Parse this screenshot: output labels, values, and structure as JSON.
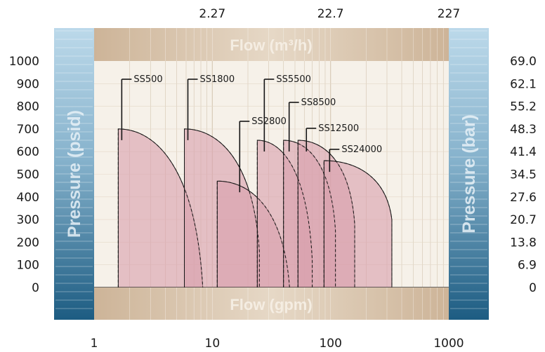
{
  "chart_data": {
    "type": "area",
    "x_scale": "log",
    "xlim": [
      1,
      1000
    ],
    "ylim": [
      0,
      1000
    ],
    "bottom_axis": {
      "title": "Flow (gpm)",
      "ticks": [
        "1",
        "10",
        "100",
        "1000"
      ]
    },
    "top_axis": {
      "title": "Flow (m³/h)",
      "ticks": [
        "2.27",
        "22.7",
        "227"
      ]
    },
    "left_axis": {
      "title": "Pressure (psid)",
      "ticks": [
        "1000",
        "900",
        "800",
        "700",
        "600",
        "500",
        "400",
        "300",
        "200",
        "100",
        "0"
      ]
    },
    "right_axis": {
      "title": "Pressure (bar)",
      "ticks": [
        "69.0",
        "62.1",
        "55.2",
        "48.3",
        "41.4",
        "34.5",
        "27.6",
        "20.7",
        "13.8",
        "6.9",
        "0"
      ]
    },
    "series": [
      {
        "name": "SS500",
        "x_min": 1.6,
        "x_max": 8.3,
        "p_max": 700,
        "p_end": 0
      },
      {
        "name": "SS1800",
        "x_min": 5.8,
        "x_max": 25,
        "p_max": 700,
        "p_end": 160
      },
      {
        "name": "SS2800",
        "x_min": 11,
        "x_max": 45,
        "p_max": 470,
        "p_end": 0
      },
      {
        "name": "SS5500",
        "x_min": 24,
        "x_max": 70,
        "p_max": 650,
        "p_end": 120
      },
      {
        "name": "SS8500",
        "x_min": 40,
        "x_max": 110,
        "p_max": 650,
        "p_end": 250
      },
      {
        "name": "SS12500",
        "x_min": 53,
        "x_max": 160,
        "p_max": 650,
        "p_end": 280
      },
      {
        "name": "SS24000",
        "x_min": 88,
        "x_max": 330,
        "p_max": 560,
        "p_end": 300
      }
    ]
  },
  "colors": {
    "fill": "#d9a0ad",
    "stroke": "#151515",
    "left_band_top": "#b3d3e6",
    "left_band_bottom": "#1e5f85",
    "top_band": "#d9c4ac"
  }
}
